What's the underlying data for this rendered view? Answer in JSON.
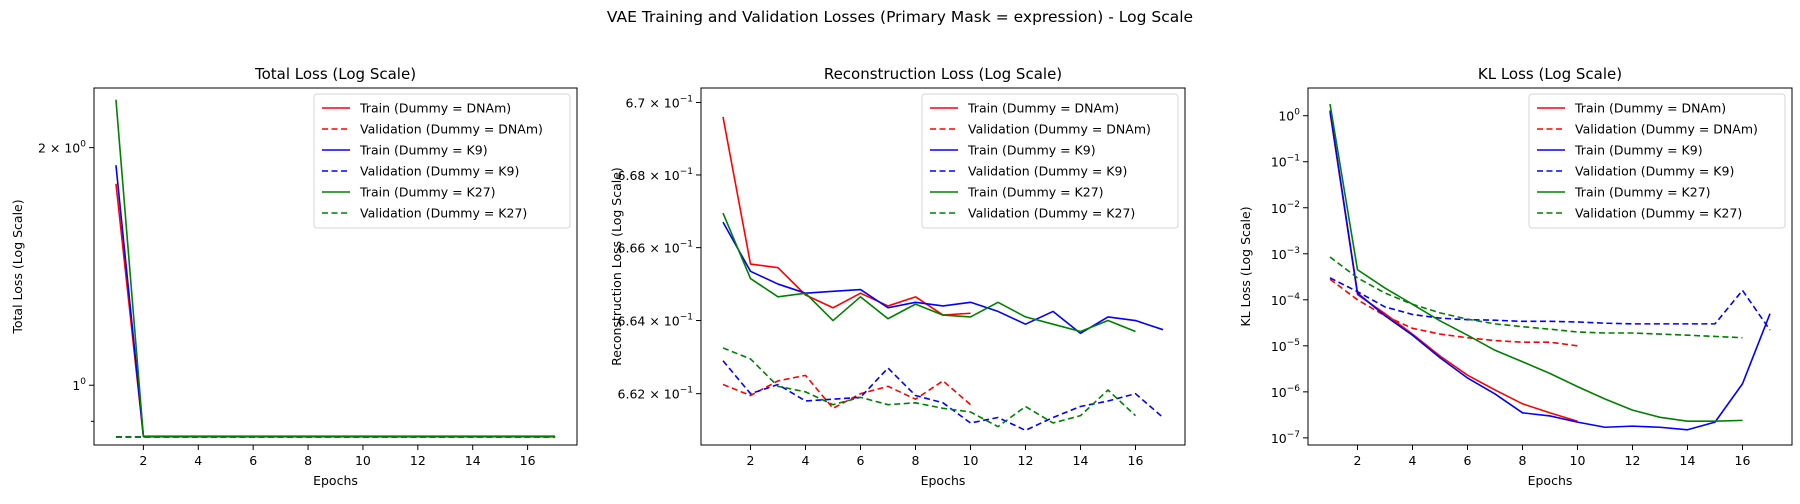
{
  "figure": {
    "title": "VAE Training and Validation Losses (Primary Mask = expression) - Log Scale"
  },
  "colors": {
    "dnam": "#ff0000",
    "k9": "#0000ff",
    "k27": "#008000"
  },
  "chart_data": [
    {
      "type": "line",
      "title": "Total Loss (Log Scale)",
      "xlabel": "Epochs",
      "ylabel": "Total Loss (Log Scale)",
      "yscale": "log",
      "xlim": [
        0.2,
        17.8
      ],
      "ylim": [
        0.84,
        2.38
      ],
      "grid": false,
      "legend_position": "top-right",
      "x_ticks": [
        2,
        4,
        6,
        8,
        10,
        12,
        14,
        16
      ],
      "x_tick_labels": [
        "2",
        "4",
        "6",
        "8",
        "10",
        "12",
        "14",
        "16"
      ],
      "y_ticks": [
        1.0,
        2.0
      ],
      "y_tick_labels": [
        {
          "base": "1",
          "mantissa": "",
          "exp": "0"
        },
        {
          "base": "2 × 10",
          "mantissa": "",
          "exp": "0"
        }
      ],
      "y_minor_ticks": [
        0.9
      ],
      "series": [
        {
          "name": "Train (Dummy = DNAm)",
          "color": "#ff0000",
          "dash": false,
          "x": [
            1,
            2,
            3,
            4,
            5,
            6,
            7,
            8,
            9,
            10,
            11,
            12,
            13,
            14,
            15,
            16,
            17
          ],
          "y": [
            1.8,
            0.861,
            0.861,
            0.861,
            0.861,
            0.861,
            0.861,
            0.861,
            0.861,
            0.861,
            0.861,
            0.861,
            0.861,
            0.861,
            0.861,
            0.861,
            0.861
          ]
        },
        {
          "name": "Validation (Dummy = DNAm)",
          "color": "#ff0000",
          "dash": true,
          "x": [
            1,
            2,
            3,
            4,
            5,
            6,
            7,
            8,
            9,
            10,
            11,
            12,
            13,
            14,
            15,
            16,
            17
          ],
          "y": [
            0.86,
            0.86,
            0.86,
            0.86,
            0.86,
            0.86,
            0.86,
            0.86,
            0.86,
            0.86,
            0.86,
            0.86,
            0.86,
            0.86,
            0.86,
            0.86,
            0.86
          ]
        },
        {
          "name": "Train (Dummy = K9)",
          "color": "#0000ff",
          "dash": false,
          "x": [
            1,
            2,
            3,
            4,
            5,
            6,
            7,
            8,
            9,
            10,
            11,
            12,
            13,
            14,
            15,
            16,
            17
          ],
          "y": [
            1.9,
            0.861,
            0.861,
            0.861,
            0.861,
            0.861,
            0.861,
            0.861,
            0.861,
            0.861,
            0.861,
            0.861,
            0.861,
            0.861,
            0.861,
            0.861,
            0.861
          ]
        },
        {
          "name": "Validation (Dummy = K9)",
          "color": "#0000ff",
          "dash": true,
          "x": [
            1,
            2,
            3,
            4,
            5,
            6,
            7,
            8,
            9,
            10,
            11,
            12,
            13,
            14,
            15,
            16,
            17
          ],
          "y": [
            0.86,
            0.86,
            0.86,
            0.86,
            0.86,
            0.86,
            0.86,
            0.86,
            0.86,
            0.86,
            0.86,
            0.86,
            0.86,
            0.86,
            0.86,
            0.86,
            0.86
          ]
        },
        {
          "name": "Train (Dummy = K27)",
          "color": "#008000",
          "dash": false,
          "x": [
            1,
            2,
            3,
            4,
            5,
            6,
            7,
            8,
            9,
            10,
            11,
            12,
            13,
            14,
            15,
            16,
            17
          ],
          "y": [
            2.3,
            0.862,
            0.862,
            0.862,
            0.862,
            0.862,
            0.862,
            0.862,
            0.862,
            0.862,
            0.862,
            0.862,
            0.862,
            0.862,
            0.862,
            0.862,
            0.862
          ]
        },
        {
          "name": "Validation (Dummy = K27)",
          "color": "#008000",
          "dash": true,
          "x": [
            1,
            2,
            3,
            4,
            5,
            6,
            7,
            8,
            9,
            10,
            11,
            12,
            13,
            14,
            15,
            16,
            17
          ],
          "y": [
            0.86,
            0.86,
            0.86,
            0.86,
            0.86,
            0.86,
            0.86,
            0.86,
            0.86,
            0.86,
            0.86,
            0.86,
            0.86,
            0.86,
            0.86,
            0.86,
            0.86
          ]
        }
      ]
    },
    {
      "type": "line",
      "title": "Reconstruction Loss (Log Scale)",
      "xlabel": "Epochs",
      "ylabel": "Reconstruction Loss (Log Scale)",
      "yscale": "log",
      "xlim": [
        0.2,
        17.8
      ],
      "ylim": [
        0.6606,
        0.6704
      ],
      "grid": false,
      "legend_position": "top-right",
      "x_ticks": [
        2,
        4,
        6,
        8,
        10,
        12,
        14,
        16
      ],
      "x_tick_labels": [
        "2",
        "4",
        "6",
        "8",
        "10",
        "12",
        "14",
        "16"
      ],
      "y_ticks": [
        0.662,
        0.664,
        0.666,
        0.668,
        0.67
      ],
      "y_tick_labels": [
        {
          "base": "6.62 × 10",
          "mantissa": "",
          "exp": "−1"
        },
        {
          "base": "6.64 × 10",
          "mantissa": "",
          "exp": "−1"
        },
        {
          "base": "6.66 × 10",
          "mantissa": "",
          "exp": "−1"
        },
        {
          "base": "6.68 × 10",
          "mantissa": "",
          "exp": "−1"
        },
        {
          "base": "6.7 × 10",
          "mantissa": "",
          "exp": "−1"
        }
      ],
      "y_minor_ticks": [],
      "series": [
        {
          "name": "Train (Dummy = DNAm)",
          "color": "#ff0000",
          "dash": false,
          "x": [
            1,
            2,
            3,
            4,
            5,
            6,
            7,
            8,
            9,
            10
          ],
          "y": [
            0.6696,
            0.66555,
            0.66545,
            0.6647,
            0.66435,
            0.66475,
            0.6644,
            0.66465,
            0.66415,
            0.6642
          ]
        },
        {
          "name": "Validation (Dummy = DNAm)",
          "color": "#ff0000",
          "dash": true,
          "x": [
            1,
            2,
            3,
            4,
            5,
            6,
            7,
            8,
            9,
            10
          ],
          "y": [
            0.66225,
            0.66195,
            0.66235,
            0.6625,
            0.6616,
            0.662,
            0.6622,
            0.66185,
            0.66235,
            0.6617
          ]
        },
        {
          "name": "Train (Dummy = K9)",
          "color": "#0000ff",
          "dash": false,
          "x": [
            1,
            2,
            3,
            4,
            5,
            6,
            7,
            8,
            9,
            10,
            11,
            12,
            13,
            14,
            15,
            16,
            17
          ],
          "y": [
            0.6667,
            0.66535,
            0.665,
            0.66475,
            0.6648,
            0.66485,
            0.66435,
            0.6645,
            0.6644,
            0.6645,
            0.66425,
            0.6639,
            0.66425,
            0.66365,
            0.6641,
            0.664,
            0.66375
          ]
        },
        {
          "name": "Validation (Dummy = K9)",
          "color": "#0000ff",
          "dash": true,
          "x": [
            1,
            2,
            3,
            4,
            5,
            6,
            7,
            8,
            9,
            10,
            11,
            12,
            13,
            14,
            15,
            16,
            17
          ],
          "y": [
            0.6629,
            0.662,
            0.66225,
            0.6618,
            0.66185,
            0.6619,
            0.6627,
            0.66195,
            0.66175,
            0.6612,
            0.66135,
            0.661,
            0.66135,
            0.66165,
            0.6618,
            0.662,
            0.66135
          ]
        },
        {
          "name": "Train (Dummy = K27)",
          "color": "#008000",
          "dash": false,
          "x": [
            1,
            2,
            3,
            4,
            5,
            6,
            7,
            8,
            9,
            10,
            11,
            12,
            13,
            14,
            15,
            16
          ],
          "y": [
            0.66695,
            0.66515,
            0.66465,
            0.66475,
            0.664,
            0.66465,
            0.66405,
            0.66445,
            0.66415,
            0.6641,
            0.6645,
            0.6641,
            0.6639,
            0.6637,
            0.664,
            0.6637
          ]
        },
        {
          "name": "Validation (Dummy = K27)",
          "color": "#008000",
          "dash": true,
          "x": [
            1,
            2,
            3,
            4,
            5,
            6,
            7,
            8,
            9,
            10,
            11,
            12,
            13,
            14,
            15,
            16
          ],
          "y": [
            0.66325,
            0.66295,
            0.6622,
            0.66205,
            0.6617,
            0.6619,
            0.6617,
            0.66175,
            0.6616,
            0.6615,
            0.6611,
            0.66165,
            0.6612,
            0.6614,
            0.6621,
            0.6614
          ]
        }
      ]
    },
    {
      "type": "line",
      "title": "KL Loss (Log Scale)",
      "xlabel": "Epochs",
      "ylabel": "KL Loss (Log Scale)",
      "yscale": "log",
      "xlim": [
        0.2,
        17.8
      ],
      "ylim": [
        7e-08,
        4
      ],
      "grid": false,
      "legend_position": "top-right",
      "x_ticks": [
        2,
        4,
        6,
        8,
        10,
        12,
        14,
        16
      ],
      "x_tick_labels": [
        "2",
        "4",
        "6",
        "8",
        "10",
        "12",
        "14",
        "16"
      ],
      "y_ticks": [
        1e-07,
        1e-06,
        1e-05,
        0.0001,
        0.001,
        0.01,
        0.1,
        1
      ],
      "y_tick_labels": [
        {
          "base": "10",
          "mantissa": "",
          "exp": "−7"
        },
        {
          "base": "10",
          "mantissa": "",
          "exp": "−6"
        },
        {
          "base": "10",
          "mantissa": "",
          "exp": "−5"
        },
        {
          "base": "10",
          "mantissa": "",
          "exp": "−4"
        },
        {
          "base": "10",
          "mantissa": "",
          "exp": "−3"
        },
        {
          "base": "10",
          "mantissa": "",
          "exp": "−2"
        },
        {
          "base": "10",
          "mantissa": "",
          "exp": "−1"
        },
        {
          "base": "10",
          "mantissa": "",
          "exp": "0"
        }
      ],
      "y_minor_ticks": [],
      "series": [
        {
          "name": "Train (Dummy = DNAm)",
          "color": "#ff0000",
          "dash": false,
          "x": [
            1,
            2,
            3,
            4,
            5,
            6,
            7,
            8,
            9,
            10
          ],
          "y": [
            1.2,
            0.00013,
            5e-05,
            1.8e-05,
            6e-06,
            2.3e-06,
            1.1e-06,
            5.5e-07,
            3.5e-07,
            2.3e-07
          ]
        },
        {
          "name": "Validation (Dummy = DNAm)",
          "color": "#ff0000",
          "dash": true,
          "x": [
            1,
            2,
            3,
            4,
            5,
            6,
            7,
            8,
            9,
            10
          ],
          "y": [
            0.00028,
            0.0001,
            4.5e-05,
            2.4e-05,
            1.8e-05,
            1.5e-05,
            1.3e-05,
            1.2e-05,
            1.2e-05,
            1e-05
          ]
        },
        {
          "name": "Train (Dummy = K9)",
          "color": "#0000ff",
          "dash": false,
          "x": [
            1,
            2,
            3,
            4,
            5,
            6,
            7,
            8,
            9,
            10,
            11,
            12,
            13,
            14,
            15,
            16,
            17
          ],
          "y": [
            1.3,
            0.00014,
            4.5e-05,
            1.7e-05,
            5.5e-06,
            2e-06,
            9e-07,
            3.5e-07,
            3e-07,
            2.2e-07,
            1.7e-07,
            1.8e-07,
            1.7e-07,
            1.5e-07,
            2.2e-07,
            1.5e-06,
            5e-05
          ]
        },
        {
          "name": "Validation (Dummy = K9)",
          "color": "#0000ff",
          "dash": true,
          "x": [
            1,
            2,
            3,
            4,
            5,
            6,
            7,
            8,
            9,
            10,
            11,
            12,
            13,
            14,
            15,
            16,
            17
          ],
          "y": [
            0.0003,
            0.00015,
            7e-05,
            4.8e-05,
            4e-05,
            3.7e-05,
            3.6e-05,
            3.4e-05,
            3.4e-05,
            3.3e-05,
            3.1e-05,
            3e-05,
            3e-05,
            3e-05,
            3e-05,
            0.00016,
            2.2e-05
          ]
        },
        {
          "name": "Train (Dummy = K27)",
          "color": "#008000",
          "dash": false,
          "x": [
            1,
            2,
            3,
            4,
            5,
            6,
            7,
            8,
            9,
            10,
            11,
            12,
            13,
            14,
            15,
            16
          ],
          "y": [
            1.8,
            0.00045,
            0.00018,
            8e-05,
            3.5e-05,
            1.7e-05,
            8e-06,
            4.5e-06,
            2.5e-06,
            1.3e-06,
            7e-07,
            4e-07,
            2.8e-07,
            2.3e-07,
            2.3e-07,
            2.4e-07
          ]
        },
        {
          "name": "Validation (Dummy = K27)",
          "color": "#008000",
          "dash": true,
          "x": [
            1,
            2,
            3,
            4,
            5,
            6,
            7,
            8,
            9,
            10,
            11,
            12,
            13,
            14,
            15,
            16
          ],
          "y": [
            0.00085,
            0.0003,
            0.00014,
            8e-05,
            5.2e-05,
            3.8e-05,
            3e-05,
            2.6e-05,
            2.3e-05,
            2e-05,
            1.9e-05,
            1.9e-05,
            1.8e-05,
            1.7e-05,
            1.6e-05,
            1.5e-05
          ]
        }
      ]
    }
  ]
}
